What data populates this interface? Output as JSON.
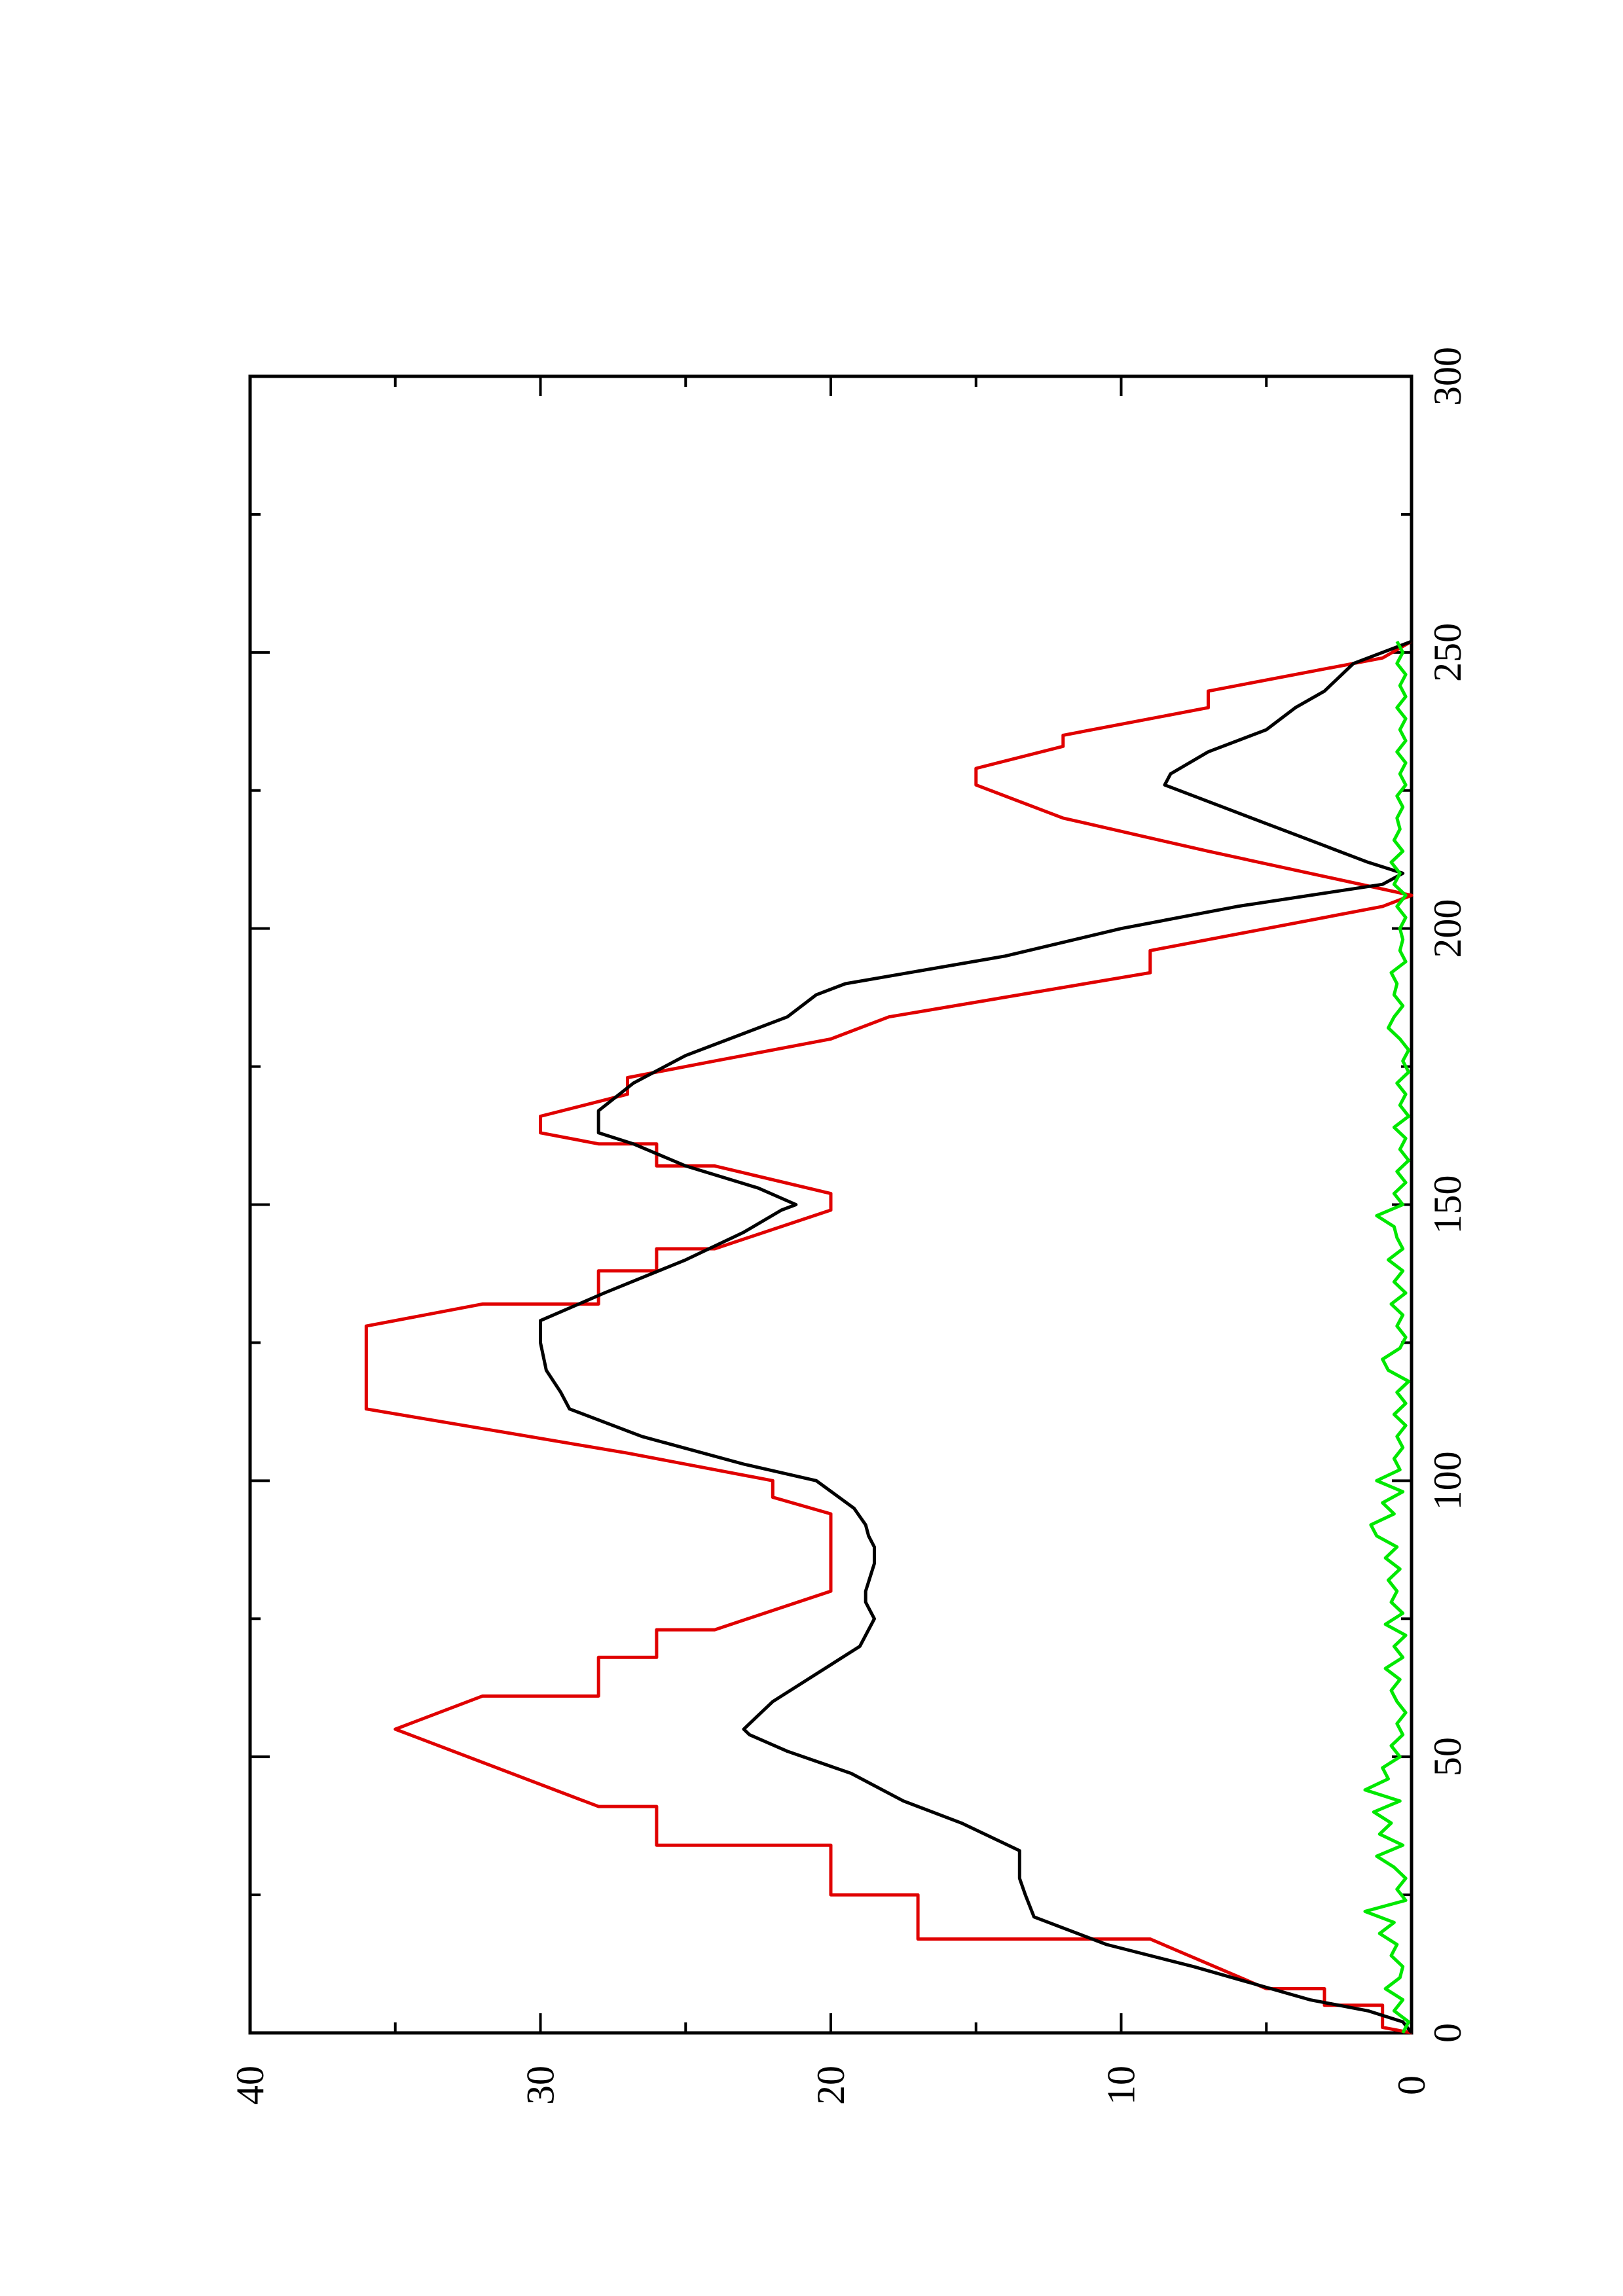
{
  "chart_data": {
    "type": "line",
    "orientation": "rotated 90° counter-clockwise (x axis runs bottom-to-top, y axis left-to-right)",
    "title": "",
    "xlabel": "",
    "ylabel": "",
    "xlim": [
      0,
      300
    ],
    "ylim": [
      0,
      40
    ],
    "grid": false,
    "legend": "none",
    "x_ticks": [
      0,
      50,
      100,
      150,
      200,
      250,
      300
    ],
    "x_tick_labels": [
      "0",
      "50",
      "100",
      "150",
      "200",
      "250",
      "300"
    ],
    "x_minor_ticks": [
      25,
      75,
      125,
      175,
      225,
      275
    ],
    "y_ticks": [
      0,
      10,
      20,
      30,
      40
    ],
    "y_tick_labels": [
      "0",
      "10",
      "20",
      "30",
      "40"
    ],
    "y_minor_ticks": [
      5,
      15,
      25,
      35
    ],
    "series": [
      {
        "color": "#e00000",
        "points": [
          [
            0,
            0
          ],
          [
            1,
            1
          ],
          [
            5,
            1
          ],
          [
            5,
            3
          ],
          [
            8,
            3
          ],
          [
            8,
            5
          ],
          [
            17,
            9
          ],
          [
            17,
            17
          ],
          [
            25,
            17
          ],
          [
            25,
            20
          ],
          [
            34,
            20
          ],
          [
            34,
            26
          ],
          [
            41,
            26
          ],
          [
            41,
            28
          ],
          [
            55,
            35
          ],
          [
            61,
            32
          ],
          [
            61,
            28
          ],
          [
            68,
            28
          ],
          [
            68,
            26
          ],
          [
            73,
            26
          ],
          [
            73,
            24
          ],
          [
            80,
            20
          ],
          [
            94,
            20
          ],
          [
            97,
            22
          ],
          [
            100,
            22
          ],
          [
            105,
            27
          ],
          [
            113,
            36
          ],
          [
            128,
            36
          ],
          [
            132,
            32
          ],
          [
            132,
            28
          ],
          [
            138,
            28
          ],
          [
            138,
            26
          ],
          [
            142,
            26
          ],
          [
            142,
            24
          ],
          [
            149,
            20
          ],
          [
            152,
            20
          ],
          [
            157,
            24
          ],
          [
            157,
            26
          ],
          [
            161,
            26
          ],
          [
            161,
            28
          ],
          [
            163,
            30
          ],
          [
            166,
            30
          ],
          [
            170,
            27
          ],
          [
            173,
            27
          ],
          [
            176,
            24
          ],
          [
            180,
            20
          ],
          [
            184,
            18
          ],
          [
            192,
            9
          ],
          [
            196,
            9
          ],
          [
            200,
            5
          ],
          [
            204,
            1
          ],
          [
            206,
            0
          ],
          [
            214,
            7
          ],
          [
            220,
            12
          ],
          [
            226,
            15
          ],
          [
            229,
            15
          ],
          [
            233,
            12
          ],
          [
            235,
            12
          ],
          [
            240,
            7
          ],
          [
            243,
            7
          ],
          [
            247,
            3
          ],
          [
            249,
            1
          ],
          [
            252,
            0
          ]
        ]
      },
      {
        "color": "#000000",
        "points": [
          [
            0,
            0
          ],
          [
            2,
            0.3
          ],
          [
            4,
            1.5
          ],
          [
            6,
            3.5
          ],
          [
            9,
            5.5
          ],
          [
            12,
            7.5
          ],
          [
            16,
            10.5
          ],
          [
            21,
            13
          ],
          [
            25,
            13.3
          ],
          [
            28,
            13.5
          ],
          [
            33,
            13.5
          ],
          [
            38,
            15.5
          ],
          [
            42,
            17.5
          ],
          [
            47,
            19.3
          ],
          [
            51,
            21.5
          ],
          [
            54,
            22.8
          ],
          [
            55,
            23
          ],
          [
            57,
            22.6
          ],
          [
            60,
            22
          ],
          [
            65,
            20.5
          ],
          [
            70,
            19
          ],
          [
            75,
            18.5
          ],
          [
            78,
            18.8
          ],
          [
            80,
            18.8
          ],
          [
            85,
            18.5
          ],
          [
            88,
            18.5
          ],
          [
            90,
            18.7
          ],
          [
            92,
            18.8
          ],
          [
            95,
            19.2
          ],
          [
            100,
            20.5
          ],
          [
            103,
            23
          ],
          [
            108,
            26.5
          ],
          [
            113,
            29
          ],
          [
            116,
            29.3
          ],
          [
            120,
            29.8
          ],
          [
            125,
            30
          ],
          [
            129,
            30
          ],
          [
            134,
            27.8
          ],
          [
            140,
            25
          ],
          [
            145,
            23
          ],
          [
            149,
            21.7
          ],
          [
            150,
            21.2
          ],
          [
            153,
            22.5
          ],
          [
            157,
            25
          ],
          [
            161,
            26.8
          ],
          [
            163,
            28
          ],
          [
            167,
            28
          ],
          [
            172,
            26.8
          ],
          [
            177,
            25
          ],
          [
            181,
            23
          ],
          [
            184,
            21.5
          ],
          [
            188,
            20.5
          ],
          [
            190,
            19.5
          ],
          [
            195,
            14
          ],
          [
            200,
            10
          ],
          [
            204,
            6
          ],
          [
            206,
            3.5
          ],
          [
            208,
            1
          ],
          [
            210,
            0.3
          ],
          [
            212,
            1.5
          ],
          [
            215,
            3
          ],
          [
            219,
            5
          ],
          [
            222,
            6.5
          ],
          [
            224,
            7.5
          ],
          [
            226,
            8.5
          ],
          [
            228,
            8.3
          ],
          [
            232,
            7
          ],
          [
            236,
            5
          ],
          [
            240,
            4
          ],
          [
            243,
            3
          ],
          [
            248,
            2
          ],
          [
            251,
            0.5
          ],
          [
            252,
            0
          ]
        ]
      },
      {
        "color": "#00e800",
        "points": [
          [
            0,
            0.3
          ],
          [
            2,
            0.1
          ],
          [
            4,
            0.6
          ],
          [
            6,
            0.3
          ],
          [
            8,
            0.9
          ],
          [
            10,
            0.4
          ],
          [
            12,
            0.3
          ],
          [
            14,
            0.7
          ],
          [
            16,
            0.5
          ],
          [
            18,
            1.1
          ],
          [
            20,
            0.6
          ],
          [
            22,
            1.6
          ],
          [
            24,
            0.2
          ],
          [
            26,
            0.5
          ],
          [
            28,
            0.2
          ],
          [
            30,
            0.6
          ],
          [
            32,
            1.2
          ],
          [
            34,
            0.3
          ],
          [
            36,
            1.1
          ],
          [
            38,
            0.7
          ],
          [
            40,
            1.3
          ],
          [
            42,
            0.4
          ],
          [
            44,
            1.6
          ],
          [
            46,
            0.8
          ],
          [
            48,
            1.0
          ],
          [
            50,
            0.4
          ],
          [
            52,
            0.7
          ],
          [
            54,
            0.3
          ],
          [
            56,
            0.5
          ],
          [
            58,
            0.2
          ],
          [
            60,
            0.5
          ],
          [
            62,
            0.7
          ],
          [
            64,
            0.4
          ],
          [
            66,
            0.9
          ],
          [
            68,
            0.3
          ],
          [
            70,
            0.6
          ],
          [
            72,
            0.2
          ],
          [
            74,
            0.9
          ],
          [
            76,
            0.3
          ],
          [
            78,
            0.7
          ],
          [
            80,
            0.5
          ],
          [
            82,
            0.8
          ],
          [
            84,
            0.4
          ],
          [
            86,
            0.9
          ],
          [
            88,
            0.5
          ],
          [
            90,
            1.2
          ],
          [
            92,
            1.4
          ],
          [
            94,
            0.6
          ],
          [
            96,
            1.0
          ],
          [
            98,
            0.3
          ],
          [
            100,
            1.2
          ],
          [
            102,
            0.4
          ],
          [
            104,
            0.6
          ],
          [
            106,
            0.3
          ],
          [
            108,
            0.5
          ],
          [
            110,
            0.2
          ],
          [
            112,
            0.6
          ],
          [
            114,
            0.2
          ],
          [
            116,
            0.5
          ],
          [
            118,
            0.1
          ],
          [
            120,
            0.8
          ],
          [
            122,
            1.0
          ],
          [
            124,
            0.4
          ],
          [
            126,
            0.2
          ],
          [
            128,
            0.5
          ],
          [
            130,
            0.3
          ],
          [
            132,
            0.7
          ],
          [
            134,
            0.2
          ],
          [
            136,
            0.6
          ],
          [
            138,
            0.3
          ],
          [
            140,
            0.8
          ],
          [
            142,
            0.3
          ],
          [
            144,
            0.5
          ],
          [
            146,
            0.6
          ],
          [
            148,
            1.2
          ],
          [
            150,
            0.3
          ],
          [
            152,
            0.6
          ],
          [
            154,
            0.2
          ],
          [
            156,
            0.5
          ],
          [
            158,
            0.1
          ],
          [
            160,
            0.4
          ],
          [
            162,
            0.2
          ],
          [
            164,
            0.6
          ],
          [
            166,
            0.1
          ],
          [
            168,
            0.4
          ],
          [
            170,
            0.2
          ],
          [
            172,
            0.5
          ],
          [
            174,
            0.1
          ],
          [
            176,
            0.3
          ],
          [
            178,
            0.1
          ],
          [
            180,
            0.4
          ],
          [
            182,
            0.8
          ],
          [
            184,
            0.6
          ],
          [
            186,
            0.3
          ],
          [
            188,
            0.6
          ],
          [
            190,
            0.5
          ],
          [
            192,
            0.7
          ],
          [
            194,
            0.2
          ],
          [
            196,
            0.4
          ],
          [
            198,
            0.3
          ],
          [
            200,
            0.4
          ],
          [
            202,
            0.2
          ],
          [
            204,
            0.5
          ],
          [
            206,
            0.2
          ],
          [
            208,
            0.6
          ],
          [
            210,
            0.4
          ],
          [
            212,
            0.7
          ],
          [
            214,
            0.3
          ],
          [
            216,
            0.6
          ],
          [
            218,
            0.4
          ],
          [
            220,
            0.5
          ],
          [
            222,
            0.3
          ],
          [
            224,
            0.5
          ],
          [
            226,
            0.2
          ],
          [
            228,
            0.4
          ],
          [
            230,
            0.2
          ],
          [
            232,
            0.5
          ],
          [
            234,
            0.2
          ],
          [
            236,
            0.4
          ],
          [
            238,
            0.2
          ],
          [
            240,
            0.5
          ],
          [
            242,
            0.2
          ],
          [
            244,
            0.4
          ],
          [
            246,
            0.2
          ],
          [
            248,
            0.5
          ],
          [
            250,
            0.3
          ],
          [
            252,
            0.5
          ]
        ]
      }
    ]
  }
}
